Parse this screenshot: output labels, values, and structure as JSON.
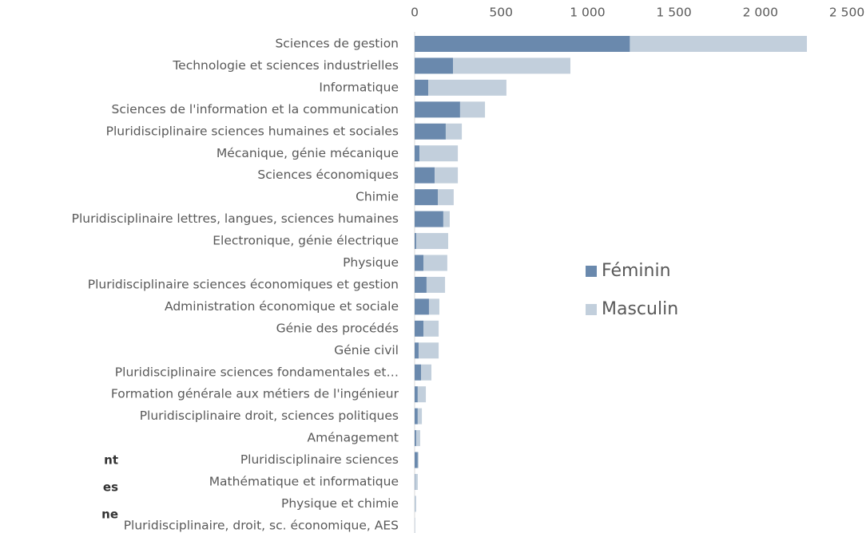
{
  "chart_data": {
    "type": "bar",
    "orientation": "horizontal",
    "stacked": true,
    "categories": [
      "Sciences de gestion",
      "Technologie et sciences industrielles",
      "Informatique",
      "Sciences de l'information et la communication",
      "Pluridisciplinaire sciences humaines et sociales",
      "Mécanique, génie mécanique",
      "Sciences économiques",
      "Chimie",
      "Pluridisciplinaire lettres, langues, sciences humaines",
      "Electronique, génie électrique",
      "Physique",
      "Pluridisciplinaire sciences économiques et gestion",
      "Administration économique et sociale",
      "Génie des procédés",
      "Génie civil",
      "Pluridisciplinaire sciences fondamentales et…",
      "Formation générale aux métiers de l'ingénieur",
      "Pluridisciplinaire droit, sciences politiques",
      "Aménagement",
      "Pluridisciplinaire sciences",
      "Mathématique et informatique",
      "Physique et chimie",
      "Pluridisciplinaire, droit, sc. économique, AES"
    ],
    "series": [
      {
        "name": "Féminin",
        "color": "#6a89ad",
        "values": [
          1245,
          222,
          79,
          263,
          180,
          28,
          116,
          134,
          166,
          9,
          51,
          69,
          83,
          51,
          23,
          37,
          18,
          18,
          9,
          18,
          2,
          1,
          1
        ]
      },
      {
        "name": "Masculin",
        "color": "#c2cfdc",
        "values": [
          1024,
          679,
          452,
          144,
          93,
          222,
          134,
          92,
          37,
          185,
          138,
          107,
          60,
          88,
          116,
          60,
          47,
          24,
          23,
          5,
          16,
          8,
          2
        ]
      }
    ],
    "xlim": [
      0,
      2500
    ],
    "xticks": [
      0,
      500,
      {
        "value": 1000,
        "label": "1 000"
      },
      {
        "value": 1500,
        "label": "1 500"
      },
      {
        "value": 2000,
        "label": "2 000"
      },
      {
        "value": 2500,
        "label": "2 500"
      }
    ],
    "legend": "right",
    "fragments": [
      "nt",
      "es",
      "ne"
    ]
  }
}
